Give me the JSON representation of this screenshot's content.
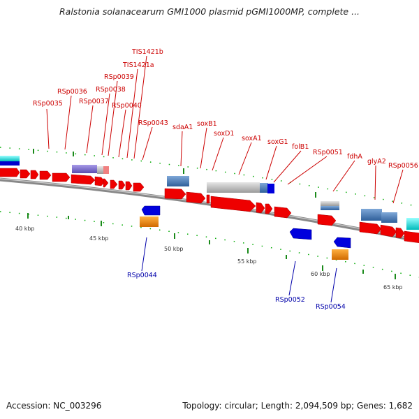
{
  "title": "Ralstonia solanacearum GMI1000 plasmid pGMI1000MP, complete ...",
  "footer": {
    "accession": "Accession: NC_003296",
    "summary": "Topology: circular; Length: 2,094,509 bp; Genes: 1,682"
  },
  "scale_labels": [
    "40 kbp",
    "45 kbp",
    "50 kbp",
    "55 kbp",
    "60 kbp",
    "65 kbp"
  ],
  "colors": {
    "gene_forward": "#ff0000",
    "gene_reverse": "#0000ee",
    "label_forward": "#cc0000",
    "label_reverse": "#0000aa",
    "orange_feature": "#ff8c00",
    "steel_feature": "#4a7fb5",
    "gray_feature": "#bdbdbd",
    "purple_feature": "#7b6cc8",
    "backbone": "#888888",
    "tick": "#008000"
  },
  "gene_labels_top": [
    "RSp0035",
    "RSp0036",
    "RSp0037",
    "RSp0038",
    "RSp0039",
    "RSp0040",
    "TIS1421a",
    "TIS1421b",
    "RSp0043",
    "sdaA1",
    "soxB1",
    "soxD1",
    "soxA1",
    "soxG1",
    "folB1",
    "RSp0051",
    "fdhA",
    "glyA2",
    "RSp0056"
  ],
  "gene_labels_bottom": [
    "RSp0044",
    "RSp0052",
    "RSp0054"
  ]
}
